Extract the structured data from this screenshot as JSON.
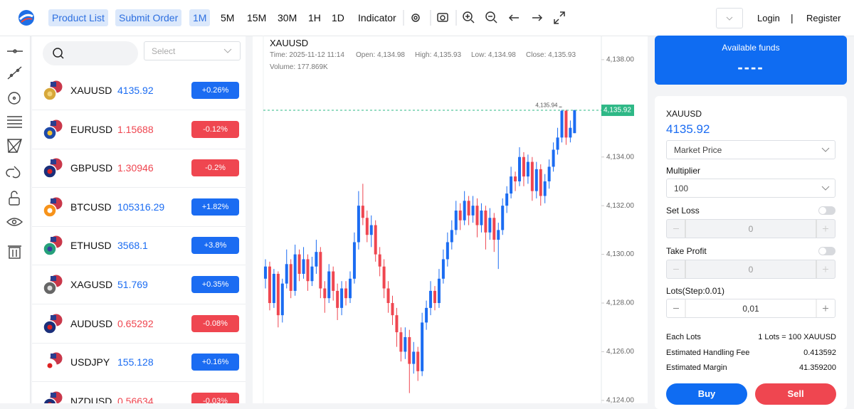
{
  "header": {
    "nav": [
      "Product List",
      "Submit Order"
    ],
    "intervals": [
      "1M",
      "5M",
      "15M",
      "30M",
      "1H",
      "1D"
    ],
    "active_interval": 0,
    "indicator": "Indicator",
    "login": "Login",
    "divider": "|",
    "register": "Register"
  },
  "search": {
    "select_placeholder": "Select"
  },
  "colors": {
    "up": "#1b6cf2",
    "down": "#ef4650"
  },
  "symbols": [
    {
      "symbol": "XAUUSD",
      "price": "4135.92",
      "change": "+0.26%",
      "direction": "up"
    },
    {
      "symbol": "EURUSD",
      "price": "1.15688",
      "change": "-0.12%",
      "direction": "down"
    },
    {
      "symbol": "GBPUSD",
      "price": "1.30946",
      "change": "-0.2%",
      "direction": "down"
    },
    {
      "symbol": "BTCUSD",
      "price": "105316.29",
      "change": "+1.82%",
      "direction": "up"
    },
    {
      "symbol": "ETHUSD",
      "price": "3568.1",
      "change": "+3.8%",
      "direction": "up"
    },
    {
      "symbol": "XAGUSD",
      "price": "51.769",
      "change": "+0.35%",
      "direction": "up"
    },
    {
      "symbol": "AUDUSD",
      "price": "0.65292",
      "change": "-0.08%",
      "direction": "down"
    },
    {
      "symbol": "USDJPY",
      "price": "155.128",
      "change": "+0.16%",
      "direction": "up"
    },
    {
      "symbol": "NZDUSD",
      "price": "0.56634",
      "change": "-0.03%",
      "direction": "down"
    }
  ],
  "chart": {
    "type": "candlestick",
    "title": "XAUUSD",
    "info": [
      "Time: 2025-11-12 11:14",
      "Open: 4,134.98",
      "High: 4,135.93",
      "Low: 4,134.98",
      "Close: 4,135.93",
      "Volume: 177.869K"
    ],
    "ylim": [
      4123.88,
      4138.99
    ],
    "yticks": [
      {
        "value": 4124,
        "label": "4,124.00"
      },
      {
        "value": 4126,
        "label": "4,126.00"
      },
      {
        "value": 4128,
        "label": "4,128.00"
      },
      {
        "value": 4130,
        "label": "4,130.00"
      },
      {
        "value": 4132,
        "label": "4,132.00"
      },
      {
        "value": 4134,
        "label": "4,134.00"
      },
      {
        "value": 4136,
        "label": "4,136.00"
      },
      {
        "value": 4138,
        "label": "4,138.00"
      }
    ],
    "max_marker": {
      "value": 4135.94,
      "label": "4,135.94"
    },
    "current_price": {
      "value": 4135.92,
      "label": "4,135.92"
    },
    "candles": [
      [
        4129.0,
        4129.8,
        4128.6,
        4129.5
      ],
      [
        4129.5,
        4129.7,
        4127.7,
        4128.0
      ],
      [
        4128.0,
        4129.4,
        4127.8,
        4129.2
      ],
      [
        4129.2,
        4129.3,
        4127.0,
        4127.5
      ],
      [
        4127.5,
        4129.0,
        4127.2,
        4128.8
      ],
      [
        4128.8,
        4130.2,
        4128.6,
        4129.6
      ],
      [
        4129.6,
        4129.8,
        4128.2,
        4128.5
      ],
      [
        4128.5,
        4130.4,
        4128.3,
        4130.0
      ],
      [
        4130.0,
        4130.2,
        4128.9,
        4129.2
      ],
      [
        4129.2,
        4130.3,
        4129.0,
        4129.8
      ],
      [
        4129.8,
        4130.0,
        4128.5,
        4128.9
      ],
      [
        4128.9,
        4129.9,
        4128.7,
        4129.5
      ],
      [
        4129.5,
        4130.6,
        4129.2,
        4130.1
      ],
      [
        4130.1,
        4130.3,
        4128.2,
        4128.6
      ],
      [
        4128.6,
        4128.9,
        4127.6,
        4128.2
      ],
      [
        4128.2,
        4129.6,
        4128.0,
        4129.3
      ],
      [
        4129.3,
        4129.5,
        4128.1,
        4128.5
      ],
      [
        4128.5,
        4128.8,
        4127.3,
        4127.8
      ],
      [
        4127.8,
        4128.9,
        4127.5,
        4128.6
      ],
      [
        4128.6,
        4128.9,
        4127.9,
        4128.2
      ],
      [
        4128.2,
        4129.3,
        4128.0,
        4129.0
      ],
      [
        4129.0,
        4130.9,
        4128.8,
        4130.5
      ],
      [
        4130.5,
        4132.6,
        4130.2,
        4132.0
      ],
      [
        4132.0,
        4132.9,
        4131.2,
        4131.5
      ],
      [
        4131.5,
        4131.8,
        4130.5,
        4130.8
      ],
      [
        4130.8,
        4131.6,
        4130.3,
        4131.2
      ],
      [
        4131.2,
        4131.4,
        4129.7,
        4130.0
      ],
      [
        4130.0,
        4130.3,
        4129.1,
        4129.5
      ],
      [
        4129.5,
        4129.8,
        4128.2,
        4128.6
      ],
      [
        4128.6,
        4128.9,
        4127.6,
        4128.0
      ],
      [
        4128.0,
        4128.3,
        4127.1,
        4127.5
      ],
      [
        4127.5,
        4127.8,
        4126.2,
        4126.8
      ],
      [
        4126.8,
        4127.0,
        4125.6,
        4126.0
      ],
      [
        4126.0,
        4127.0,
        4125.7,
        4126.6
      ],
      [
        4126.6,
        4126.9,
        4124.3,
        4125.5
      ],
      [
        4125.5,
        4126.4,
        4125.1,
        4126.0
      ],
      [
        4126.0,
        4126.2,
        4124.8,
        4125.2
      ],
      [
        4125.2,
        4127.6,
        4125.0,
        4127.2
      ],
      [
        4127.2,
        4128.1,
        4126.9,
        4127.8
      ],
      [
        4127.8,
        4128.9,
        4127.5,
        4128.5
      ],
      [
        4128.5,
        4128.7,
        4127.7,
        4128.0
      ],
      [
        4128.0,
        4129.4,
        4127.8,
        4129.0
      ],
      [
        4129.0,
        4130.2,
        4128.8,
        4129.8
      ],
      [
        4129.8,
        4130.9,
        4129.5,
        4130.5
      ],
      [
        4130.5,
        4131.4,
        4130.2,
        4131.0
      ],
      [
        4131.0,
        4132.2,
        4130.8,
        4131.8
      ],
      [
        4131.8,
        4132.1,
        4131.0,
        4131.4
      ],
      [
        4131.4,
        4132.6,
        4131.2,
        4132.2
      ],
      [
        4132.2,
        4132.4,
        4131.2,
        4131.6
      ],
      [
        4131.6,
        4132.4,
        4131.3,
        4132.0
      ],
      [
        4132.0,
        4132.3,
        4130.7,
        4131.2
      ],
      [
        4131.2,
        4132.1,
        4130.9,
        4131.8
      ],
      [
        4131.8,
        4132.0,
        4130.2,
        4130.9
      ],
      [
        4130.9,
        4131.9,
        4130.6,
        4131.5
      ],
      [
        4131.5,
        4131.7,
        4130.1,
        4130.6
      ],
      [
        4130.6,
        4131.3,
        4129.4,
        4131.0
      ],
      [
        4131.0,
        4132.3,
        4130.8,
        4132.0
      ],
      [
        4132.0,
        4132.8,
        4131.7,
        4132.5
      ],
      [
        4132.5,
        4133.6,
        4132.3,
        4133.2
      ],
      [
        4133.2,
        4133.4,
        4132.6,
        4133.0
      ],
      [
        4133.0,
        4134.4,
        4132.8,
        4134.0
      ],
      [
        4134.0,
        4134.2,
        4132.8,
        4133.2
      ],
      [
        4133.2,
        4134.1,
        4132.9,
        4133.8
      ],
      [
        4133.8,
        4134.0,
        4132.2,
        4132.6
      ],
      [
        4132.6,
        4133.8,
        4132.3,
        4133.5
      ],
      [
        4133.5,
        4133.7,
        4132.0,
        4132.4
      ],
      [
        4132.4,
        4133.3,
        4132.1,
        4133.0
      ],
      [
        4133.0,
        4133.9,
        4132.7,
        4133.6
      ],
      [
        4133.6,
        4134.6,
        4133.4,
        4134.3
      ],
      [
        4134.3,
        4135.2,
        4134.1,
        4134.8
      ],
      [
        4134.8,
        4135.94,
        4134.6,
        4135.9
      ],
      [
        4135.9,
        4135.94,
        4134.5,
        4134.8
      ],
      [
        4134.8,
        4135.5,
        4134.6,
        4135.2
      ],
      [
        4134.98,
        4135.93,
        4134.98,
        4135.93
      ]
    ]
  },
  "order": {
    "funds_title": "Available funds",
    "funds_value": "----",
    "symbol": "XAUUSD",
    "price": "4135.92",
    "order_type": "Market Price",
    "multiplier_label": "Multiplier",
    "multiplier": "100",
    "set_loss_label": "Set Loss",
    "set_loss": "0",
    "take_profit_label": "Take Profit",
    "take_profit": "0",
    "lots_label": "Lots(Step:0.01)",
    "lots": "0,01",
    "details": [
      [
        "Each Lots",
        "1 Lots = 100 XAUUSD"
      ],
      [
        "Estimated Handling Fee",
        "0.413592"
      ],
      [
        "Estimated Margin",
        "41.359200"
      ]
    ],
    "buy": "Buy",
    "sell": "Sell"
  }
}
